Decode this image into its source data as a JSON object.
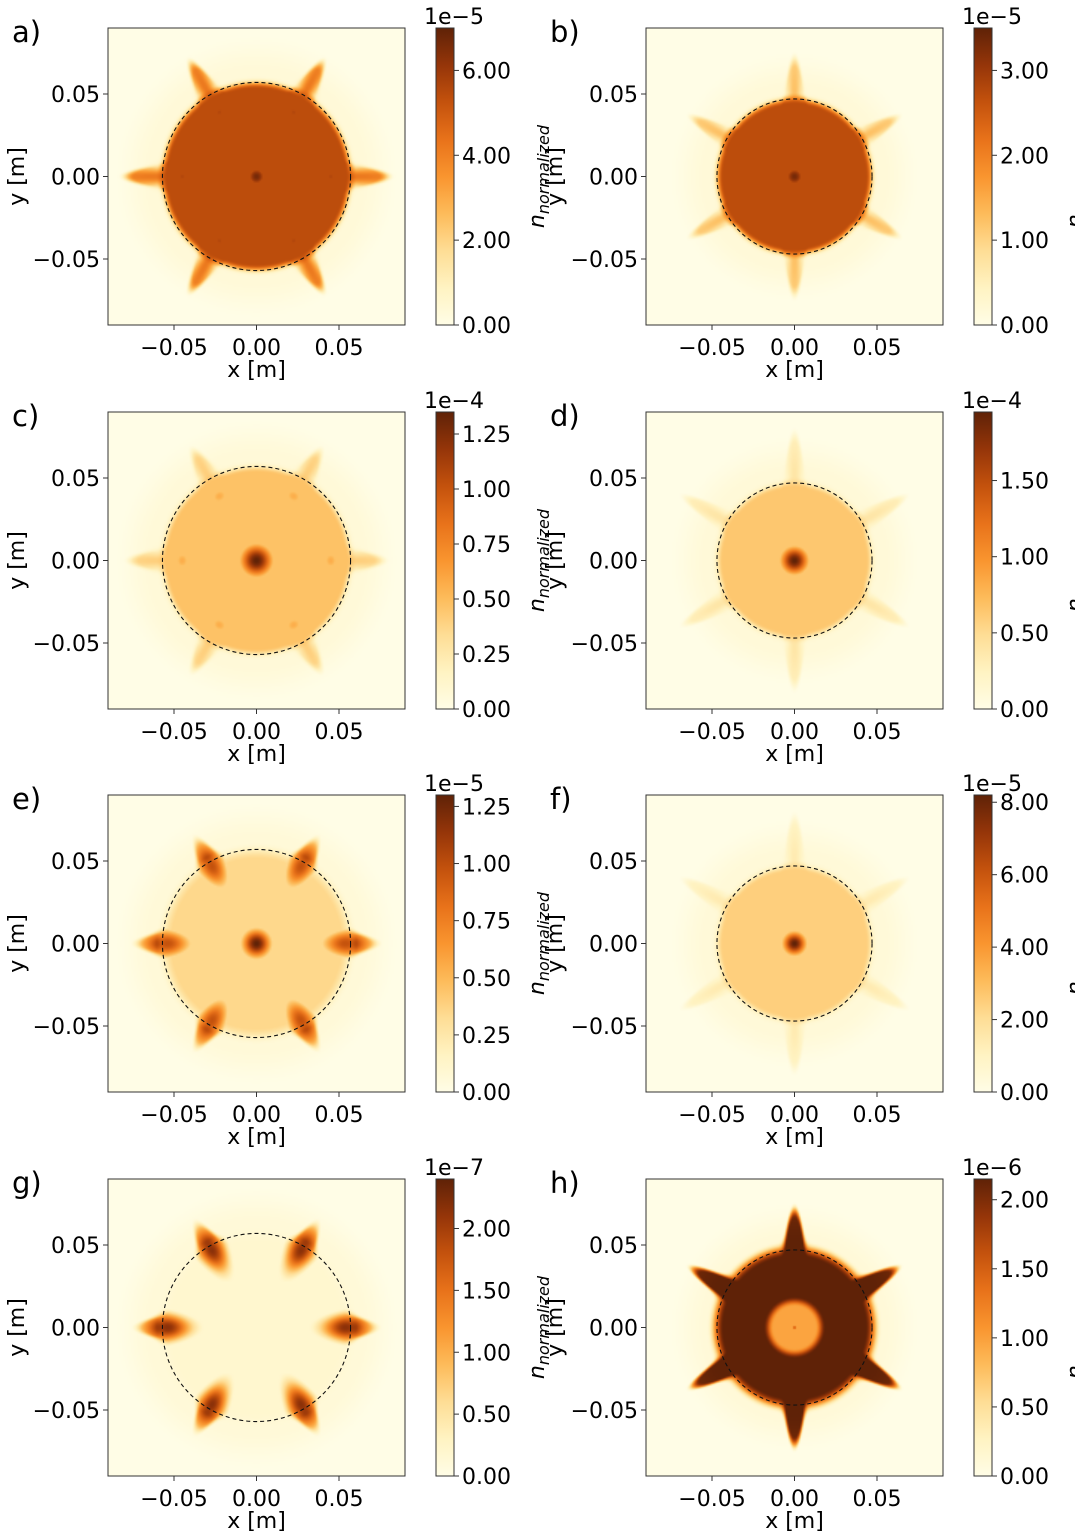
{
  "colormap": {
    "name": "YlOrBr",
    "stops": [
      "#fffde6",
      "#fff3c2",
      "#fedd95",
      "#fdbb5a",
      "#f9952f",
      "#e8721a",
      "#c4520d",
      "#953509",
      "#5f2207"
    ]
  },
  "chart_data": [
    {
      "panel_label": "a)",
      "type": "heatmap",
      "xlabel": "x [m]",
      "ylabel": "y [m]",
      "xlim": [
        -0.09,
        0.09
      ],
      "ylim": [
        -0.09,
        0.09
      ],
      "xticks": [
        "−0.05",
        "0.00",
        "0.05"
      ],
      "yticks": [
        "0.05",
        "0.00",
        "−0.05"
      ],
      "xtick_values": [
        -0.05,
        0.0,
        0.05
      ],
      "ytick_values": [
        0.05,
        0.0,
        -0.05
      ],
      "dashed_circle_radius": 0.057,
      "colorbar": {
        "label": "n_normalized",
        "label_main": "n",
        "label_sub": "normalized",
        "offset": "1e−5",
        "max": 7.0,
        "ticks": [
          0,
          2,
          4,
          6
        ],
        "tick_labels": [
          "0.00",
          "2.00",
          "4.00",
          "6.00"
        ]
      },
      "field": {
        "pattern": "filled",
        "inner_level": 0.72,
        "core_level": 0.95,
        "core_radius": 0.006,
        "petal_level": 0.55,
        "petal_count": 6,
        "petal_radius": 0.078,
        "rotation_deg": 0,
        "arc_level": 0.8
      }
    },
    {
      "panel_label": "b)",
      "type": "heatmap",
      "xlabel": "x [m]",
      "ylabel": "y [m]",
      "xlim": [
        -0.09,
        0.09
      ],
      "ylim": [
        -0.09,
        0.09
      ],
      "xticks": [
        "−0.05",
        "0.00",
        "0.05"
      ],
      "yticks": [
        "0.05",
        "0.00",
        "−0.05"
      ],
      "xtick_values": [
        -0.05,
        0.0,
        0.05
      ],
      "ytick_values": [
        0.05,
        0.0,
        -0.05
      ],
      "dashed_circle_radius": 0.047,
      "colorbar": {
        "label": "n_normalized",
        "label_main": "n",
        "label_sub": "normalized",
        "offset": "1e−5",
        "max": 3.5,
        "ticks": [
          0,
          1,
          2,
          3
        ],
        "tick_labels": [
          "0.00",
          "1.00",
          "2.00",
          "3.00"
        ]
      },
      "field": {
        "pattern": "filled",
        "inner_level": 0.72,
        "core_level": 0.95,
        "core_radius": 0.006,
        "petal_level": 0.3,
        "petal_count": 6,
        "petal_radius": 0.07,
        "rotation_deg": 30,
        "arc_level": 0
      }
    },
    {
      "panel_label": "c)",
      "type": "heatmap",
      "xlabel": "x [m]",
      "ylabel": "y [m]",
      "xlim": [
        -0.09,
        0.09
      ],
      "ylim": [
        -0.09,
        0.09
      ],
      "xticks": [
        "−0.05",
        "0.00",
        "0.05"
      ],
      "yticks": [
        "0.05",
        "0.00",
        "−0.05"
      ],
      "xtick_values": [
        -0.05,
        0.0,
        0.05
      ],
      "ytick_values": [
        0.05,
        0.0,
        -0.05
      ],
      "dashed_circle_radius": 0.057,
      "colorbar": {
        "label": "n_normalized",
        "label_main": "n",
        "label_sub": "normalized",
        "offset": "1e−4",
        "max": 1.35,
        "ticks": [
          0,
          0.25,
          0.5,
          0.75,
          1.0,
          1.25
        ],
        "tick_labels": [
          "0.00",
          "0.25",
          "0.50",
          "0.75",
          "1.00",
          "1.25"
        ]
      },
      "field": {
        "pattern": "filled",
        "inner_level": 0.3,
        "core_level": 1.0,
        "core_radius": 0.007,
        "petal_level": 0.25,
        "petal_count": 6,
        "petal_radius": 0.075,
        "rotation_deg": 0,
        "arc_level": 0.42
      }
    },
    {
      "panel_label": "d)",
      "type": "heatmap",
      "xlabel": "x [m]",
      "ylabel": "y [m]",
      "xlim": [
        -0.09,
        0.09
      ],
      "ylim": [
        -0.09,
        0.09
      ],
      "xticks": [
        "−0.05",
        "0.00",
        "0.05"
      ],
      "yticks": [
        "0.05",
        "0.00",
        "−0.05"
      ],
      "xtick_values": [
        -0.05,
        0.0,
        0.05
      ],
      "ytick_values": [
        0.05,
        0.0,
        -0.05
      ],
      "dashed_circle_radius": 0.047,
      "colorbar": {
        "label": "n_normalized",
        "label_main": "n",
        "label_sub": "normalized",
        "offset": "1e−4",
        "max": 1.95,
        "ticks": [
          0,
          0.5,
          1.0,
          1.5
        ],
        "tick_labels": [
          "0.00",
          "0.50",
          "1.00",
          "1.50"
        ]
      },
      "field": {
        "pattern": "filled",
        "inner_level": 0.28,
        "core_level": 1.0,
        "core_radius": 0.006,
        "petal_level": 0.15,
        "petal_count": 6,
        "petal_radius": 0.075,
        "rotation_deg": 30,
        "arc_level": 0
      }
    },
    {
      "panel_label": "e)",
      "type": "heatmap",
      "xlabel": "x [m]",
      "ylabel": "y [m]",
      "xlim": [
        -0.09,
        0.09
      ],
      "ylim": [
        -0.09,
        0.09
      ],
      "xticks": [
        "−0.05",
        "0.00",
        "0.05"
      ],
      "yticks": [
        "0.05",
        "0.00",
        "−0.05"
      ],
      "xtick_values": [
        -0.05,
        0.0,
        0.05
      ],
      "ytick_values": [
        0.05,
        0.0,
        -0.05
      ],
      "dashed_circle_radius": 0.057,
      "colorbar": {
        "label": "n_normalized",
        "label_main": "n",
        "label_sub": "normalized",
        "offset": "1e−5",
        "max": 1.3,
        "ticks": [
          0,
          0.25,
          0.5,
          0.75,
          1.0,
          1.25
        ],
        "tick_labels": [
          "0.00",
          "0.25",
          "0.50",
          "0.75",
          "1.00",
          "1.25"
        ]
      },
      "field": {
        "pattern": "rim",
        "inner_level": 0.22,
        "core_level": 1.0,
        "core_radius": 0.006,
        "petal_level": 0.3,
        "petal_count": 6,
        "petal_radius": 0.072,
        "rotation_deg": 0,
        "arc_level": 0.75
      }
    },
    {
      "panel_label": "f)",
      "type": "heatmap",
      "xlabel": "x [m]",
      "ylabel": "y [m]",
      "xlim": [
        -0.09,
        0.09
      ],
      "ylim": [
        -0.09,
        0.09
      ],
      "xticks": [
        "−0.05",
        "0.00",
        "0.05"
      ],
      "yticks": [
        "0.05",
        "0.00",
        "−0.05"
      ],
      "xtick_values": [
        -0.05,
        0.0,
        0.05
      ],
      "ytick_values": [
        0.05,
        0.0,
        -0.05
      ],
      "dashed_circle_radius": 0.047,
      "colorbar": {
        "label": "n_normalized",
        "label_main": "n",
        "label_sub": "normalized",
        "offset": "1e−5",
        "max": 8.2,
        "ticks": [
          0,
          2,
          4,
          6,
          8
        ],
        "tick_labels": [
          "0.00",
          "2.00",
          "4.00",
          "6.00",
          "8.00"
        ]
      },
      "field": {
        "pattern": "filled",
        "inner_level": 0.25,
        "core_level": 1.0,
        "core_radius": 0.005,
        "petal_level": 0.12,
        "petal_count": 6,
        "petal_radius": 0.075,
        "rotation_deg": 30,
        "arc_level": 0
      }
    },
    {
      "panel_label": "g)",
      "type": "heatmap",
      "xlabel": "x [m]",
      "ylabel": "y [m]",
      "xlim": [
        -0.09,
        0.09
      ],
      "ylim": [
        -0.09,
        0.09
      ],
      "xticks": [
        "−0.05",
        "0.00",
        "0.05"
      ],
      "yticks": [
        "0.05",
        "0.00",
        "−0.05"
      ],
      "xtick_values": [
        -0.05,
        0.0,
        0.05
      ],
      "ytick_values": [
        0.05,
        0.0,
        -0.05
      ],
      "dashed_circle_radius": 0.057,
      "colorbar": {
        "label": "n_normalized",
        "label_main": "n",
        "label_sub": "normalized",
        "offset": "1e−7",
        "max": 2.4,
        "ticks": [
          0,
          0.5,
          1.0,
          1.5,
          2.0
        ],
        "tick_labels": [
          "0.00",
          "0.50",
          "1.00",
          "1.50",
          "2.00"
        ]
      },
      "field": {
        "pattern": "rim",
        "inner_level": 0.03,
        "core_level": 0.08,
        "core_radius": 0.004,
        "petal_level": 0.2,
        "petal_count": 6,
        "petal_radius": 0.072,
        "rotation_deg": 0,
        "arc_level": 0.9
      }
    },
    {
      "panel_label": "h)",
      "type": "heatmap",
      "xlabel": "x [m]",
      "ylabel": "y [m]",
      "xlim": [
        -0.09,
        0.09
      ],
      "ylim": [
        -0.09,
        0.09
      ],
      "xticks": [
        "−0.05",
        "0.00",
        "0.05"
      ],
      "yticks": [
        "0.05",
        "0.00",
        "−0.05"
      ],
      "xtick_values": [
        -0.05,
        0.0,
        0.05
      ],
      "ytick_values": [
        0.05,
        0.0,
        -0.05
      ],
      "dashed_circle_radius": 0.047,
      "colorbar": {
        "label": "n_normalized",
        "label_main": "n",
        "label_sub": "normalized",
        "offset": "1e−6",
        "max": 2.15,
        "ticks": [
          0,
          0.5,
          1.0,
          1.5,
          2.0
        ],
        "tick_labels": [
          "0.00",
          "0.50",
          "1.00",
          "1.50",
          "2.00"
        ]
      },
      "field": {
        "pattern": "ring",
        "inner_level": 0.45,
        "core_level": 0.4,
        "core_radius": 0.015,
        "petal_level": 0.95,
        "petal_count": 6,
        "petal_radius": 0.07,
        "rotation_deg": 30,
        "arc_level": 0
      }
    }
  ]
}
